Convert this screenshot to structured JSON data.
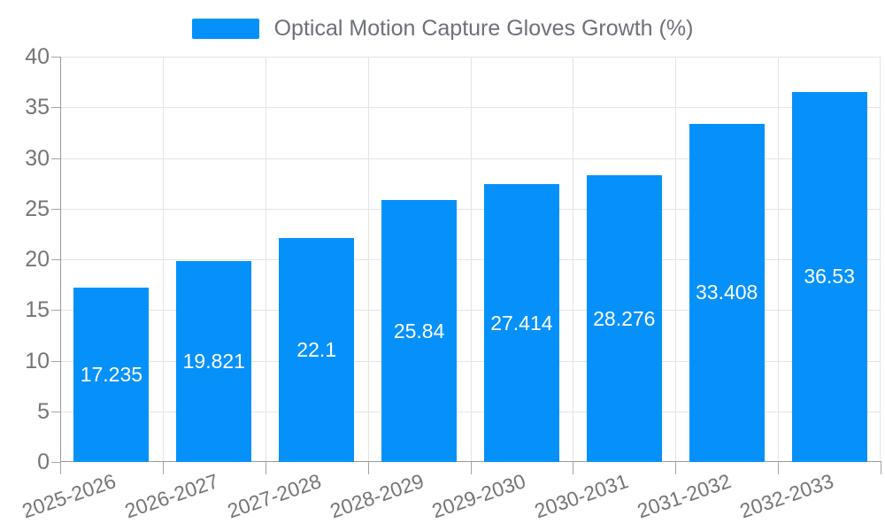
{
  "chart_data": {
    "type": "bar",
    "title": "Optical Motion Capture Gloves Growth (%)",
    "legend": {
      "label": "Optical Motion Capture Gloves Growth (%)",
      "position": "top-center"
    },
    "categories": [
      "2025-2026",
      "2026-2027",
      "2027-2028",
      "2028-2029",
      "2029-2030",
      "2030-2031",
      "2031-2032",
      "2032-2033"
    ],
    "values": [
      17.235,
      19.821,
      22.1,
      25.84,
      27.414,
      28.276,
      33.408,
      36.53
    ],
    "value_labels": [
      "17.235",
      "19.821",
      "22.1",
      "25.84",
      "27.414",
      "28.276",
      "33.408",
      "36.53"
    ],
    "xlabel": "",
    "ylabel": "",
    "ylim": [
      0,
      40
    ],
    "yticks": [
      0,
      5,
      10,
      15,
      20,
      25,
      30,
      35,
      40
    ],
    "grid": true,
    "x_label_rotation_deg": -19,
    "colors": {
      "bar": "#0591f9",
      "bar_label": "#ffffff",
      "grid_line": "#e4e4e4",
      "axis_line": "#999999",
      "tick_mark": "#a3a3a3",
      "axis_text": "#757575",
      "legend_text": "#6e7079",
      "background": "#ffffff"
    }
  }
}
